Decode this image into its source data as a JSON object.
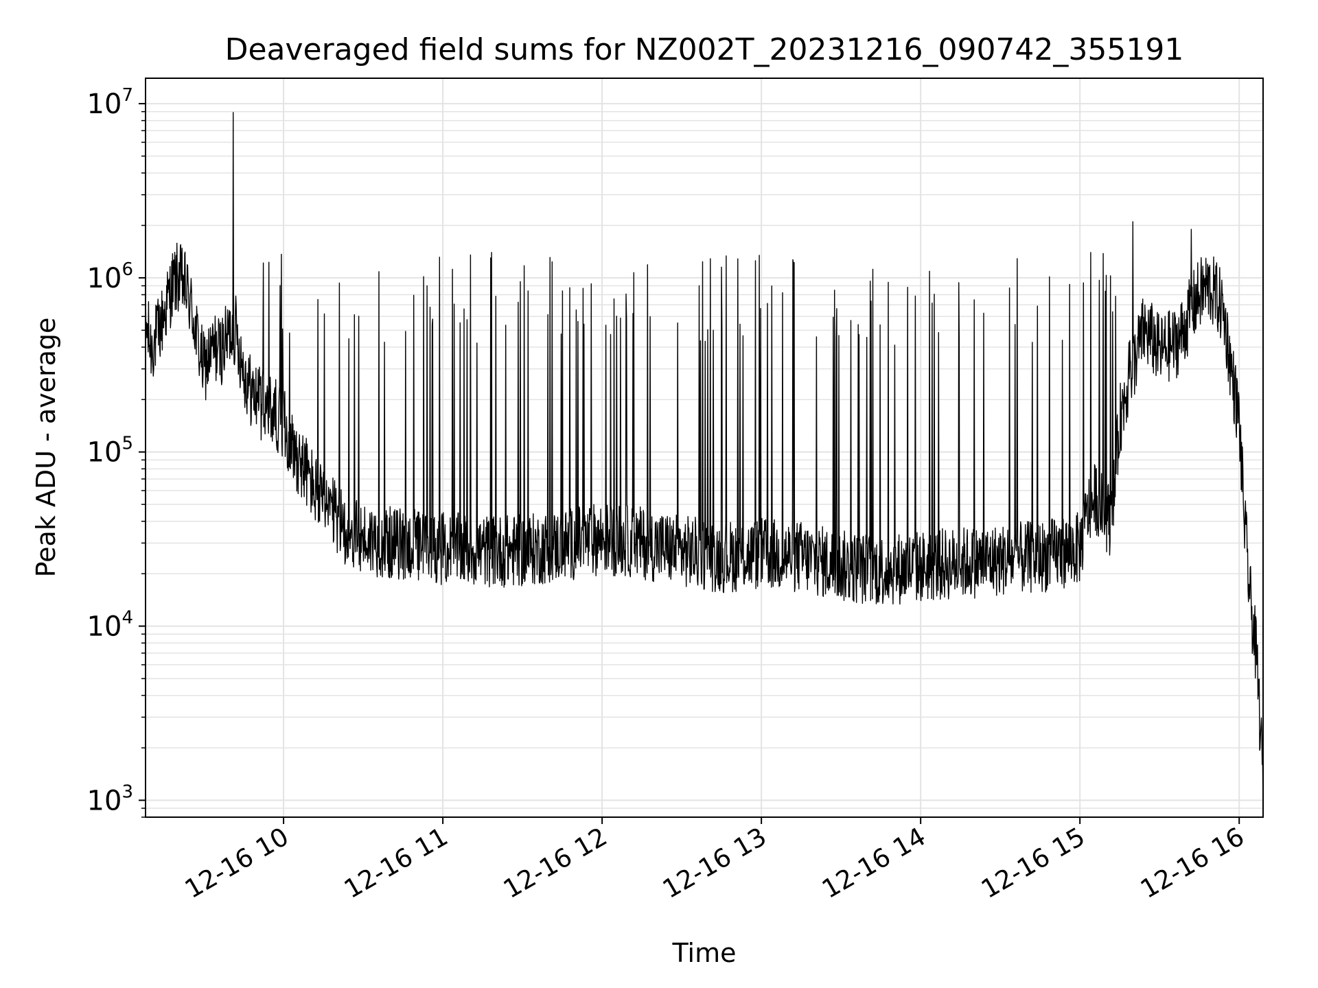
{
  "chart_data": {
    "type": "line",
    "title": "Deaveraged field sums for NZ002T_20231216_090742_355191",
    "xlabel": "Time",
    "ylabel": "Peak ADU - average",
    "yscale": "log",
    "xlim": [
      "2023-12-16 09:08",
      "2023-12-16 16:09"
    ],
    "ylim": [
      800,
      14000000
    ],
    "grid": true,
    "line_color": "#000000",
    "grid_color": "#e3e3e3",
    "x_ticks": [
      {
        "value": "2023-12-16 10:00",
        "label": "12-16 10"
      },
      {
        "value": "2023-12-16 11:00",
        "label": "12-16 11"
      },
      {
        "value": "2023-12-16 12:00",
        "label": "12-16 12"
      },
      {
        "value": "2023-12-16 13:00",
        "label": "12-16 13"
      },
      {
        "value": "2023-12-16 14:00",
        "label": "12-16 14"
      },
      {
        "value": "2023-12-16 15:00",
        "label": "12-16 15"
      },
      {
        "value": "2023-12-16 16:00",
        "label": "12-16 16"
      }
    ],
    "y_ticks": [
      {
        "value": 1000,
        "base": "10",
        "exp": "3"
      },
      {
        "value": 10000,
        "base": "10",
        "exp": "4"
      },
      {
        "value": 100000,
        "base": "10",
        "exp": "5"
      },
      {
        "value": 1000000,
        "base": "10",
        "exp": "6"
      },
      {
        "value": 10000000,
        "base": "10",
        "exp": "7"
      }
    ],
    "series": [
      {
        "x": [
          "2023-12-16 09:08",
          "2023-12-16 09:10",
          "2023-12-16 09:12",
          "2023-12-16 09:14",
          "2023-12-16 09:16",
          "2023-12-16 09:18",
          "2023-12-16 09:20",
          "2023-12-16 09:22",
          "2023-12-16 09:24",
          "2023-12-16 09:26",
          "2023-12-16 09:28",
          "2023-12-16 09:30",
          "2023-12-16 09:32",
          "2023-12-16 09:34",
          "2023-12-16 09:36",
          "2023-12-16 09:38",
          "2023-12-16 09:40",
          "2023-12-16 09:41",
          "2023-12-16 09:42",
          "2023-12-16 09:44",
          "2023-12-16 09:46",
          "2023-12-16 09:48",
          "2023-12-16 09:50",
          "2023-12-16 09:53",
          "2023-12-16 09:56",
          "2023-12-16 10:00",
          "2023-12-16 10:03",
          "2023-12-16 10:06",
          "2023-12-16 10:09",
          "2023-12-16 10:12",
          "2023-12-16 10:15",
          "2023-12-16 10:18",
          "2023-12-16 10:22",
          "2023-12-16 10:26",
          "2023-12-16 10:30",
          "2023-12-16 10:40",
          "2023-12-16 10:50",
          "2023-12-16 11:00",
          "2023-12-16 11:15",
          "2023-12-16 11:30",
          "2023-12-16 11:45",
          "2023-12-16 12:00",
          "2023-12-16 12:15",
          "2023-12-16 12:30",
          "2023-12-16 12:45",
          "2023-12-16 13:00",
          "2023-12-16 13:15",
          "2023-12-16 13:30",
          "2023-12-16 13:45",
          "2023-12-16 14:00",
          "2023-12-16 14:15",
          "2023-12-16 14:30",
          "2023-12-16 14:45",
          "2023-12-16 15:00",
          "2023-12-16 15:03",
          "2023-12-16 15:06",
          "2023-12-16 15:09",
          "2023-12-16 15:12",
          "2023-12-16 15:15",
          "2023-12-16 15:18",
          "2023-12-16 15:21",
          "2023-12-16 15:24",
          "2023-12-16 15:27",
          "2023-12-16 15:30",
          "2023-12-16 15:33",
          "2023-12-16 15:36",
          "2023-12-16 15:39",
          "2023-12-16 15:42",
          "2023-12-16 15:45",
          "2023-12-16 15:48",
          "2023-12-16 15:51",
          "2023-12-16 15:54",
          "2023-12-16 15:57",
          "2023-12-16 16:00",
          "2023-12-16 16:02",
          "2023-12-16 16:04",
          "2023-12-16 16:06",
          "2023-12-16 16:07",
          "2023-12-16 16:08",
          "2023-12-16 16:09"
        ],
        "y": [
          550000,
          400000,
          450000,
          550000,
          700000,
          900000,
          1000000,
          950000,
          800000,
          600000,
          400000,
          300000,
          350000,
          400000,
          380000,
          420000,
          500000,
          8900000,
          500000,
          350000,
          260000,
          220000,
          200000,
          180000,
          170000,
          150000,
          110000,
          90000,
          75000,
          60000,
          50000,
          45000,
          38000,
          33000,
          32000,
          30000,
          29000,
          28000,
          27000,
          27000,
          29000,
          32000,
          30000,
          27000,
          25000,
          26000,
          25000,
          22000,
          21000,
          22000,
          23000,
          24000,
          25000,
          28000,
          45000,
          55000,
          45000,
          40000,
          150000,
          250000,
          350000,
          500000,
          450000,
          380000,
          400000,
          420000,
          500000,
          650000,
          800000,
          900000,
          800000,
          650000,
          300000,
          150000,
          40000,
          15000,
          8000,
          5000,
          2500,
          1200
        ]
      }
    ],
    "spikes": {
      "x_range": [
        "2023-12-16 09:50",
        "2023-12-16 15:20"
      ],
      "peak_range": [
        400000,
        1400000
      ],
      "notable_peaks": [
        {
          "x": "2023-12-16 15:20",
          "y": 2100000
        },
        {
          "x": "2023-12-16 15:42",
          "y": 1900000
        }
      ]
    }
  }
}
